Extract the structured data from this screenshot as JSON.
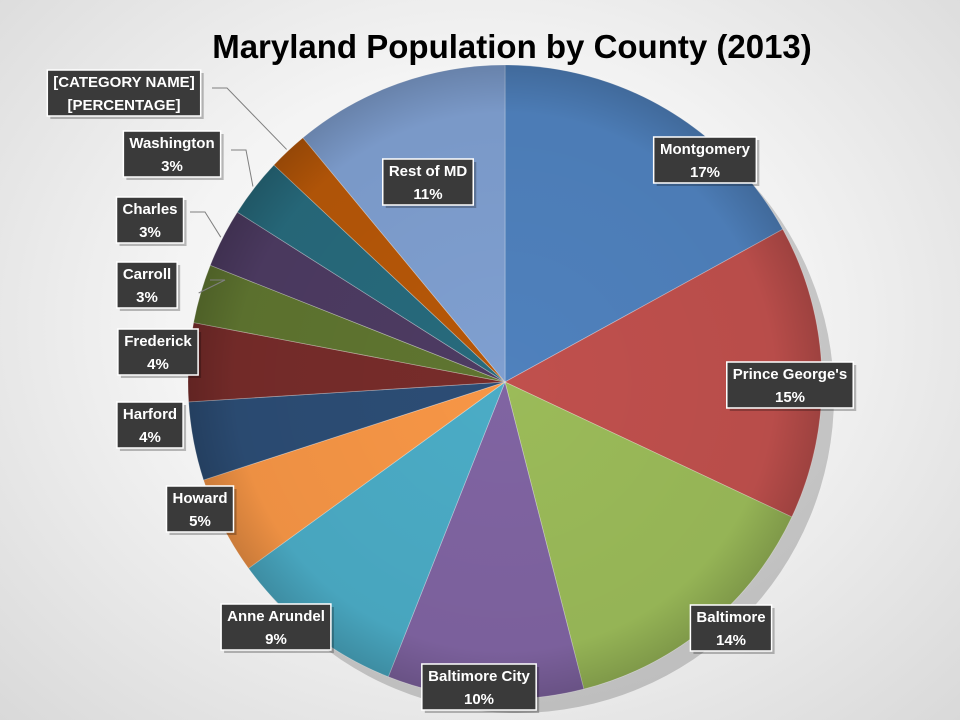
{
  "chart_data": {
    "type": "pie",
    "title": "Maryland Population by County (2013)",
    "slices": [
      {
        "name": "Montgomery",
        "label": "17%",
        "value": 17,
        "color": "#4f81bd"
      },
      {
        "name": "Prince George's",
        "label": "15%",
        "value": 15,
        "color": "#c0504d"
      },
      {
        "name": "Baltimore",
        "label": "14%",
        "value": 14,
        "color": "#9bbb59"
      },
      {
        "name": "Baltimore City",
        "label": "10%",
        "value": 10,
        "color": "#8064a2"
      },
      {
        "name": "Anne Arundel",
        "label": "9%",
        "value": 9,
        "color": "#4bacc6"
      },
      {
        "name": "Howard",
        "label": "5%",
        "value": 5,
        "color": "#f79646"
      },
      {
        "name": "Harford",
        "label": "4%",
        "value": 4,
        "color": "#2c4d75"
      },
      {
        "name": "Frederick",
        "label": "4%",
        "value": 4,
        "color": "#772c2a"
      },
      {
        "name": "Carroll",
        "label": "3%",
        "value": 3,
        "color": "#5f7530"
      },
      {
        "name": "Charles",
        "label": "3%",
        "value": 3,
        "color": "#4d3b62"
      },
      {
        "name": "Washington",
        "label": "3%",
        "value": 3,
        "color": "#276a7c"
      },
      {
        "name": "[CATEGORY NAME]",
        "label": "[PERCENTAGE]",
        "value": 2,
        "color": "#b65708"
      },
      {
        "name": "Rest of MD",
        "label": "11%",
        "value": 11,
        "color": "#7f9fd0"
      }
    ]
  }
}
